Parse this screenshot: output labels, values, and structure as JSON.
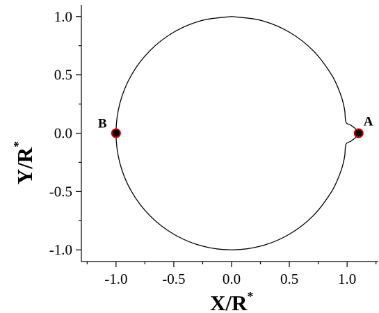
{
  "chart_data": {
    "type": "line",
    "xlabel": "X/R",
    "xlabel_sup": "*",
    "ylabel": "Y/R",
    "ylabel_sup": "*",
    "xlim": [
      -1.3,
      1.27
    ],
    "ylim": [
      -1.1,
      1.1
    ],
    "xticks": [
      -1.0,
      -0.5,
      0.0,
      0.5,
      1.0
    ],
    "yticks": [
      -1.0,
      -0.5,
      0.0,
      0.5,
      1.0
    ],
    "xtick_labels": [
      "-1.0",
      "-0.5",
      "0.0",
      "0.5",
      "1.0"
    ],
    "ytick_labels": [
      "-1.0",
      "-0.5",
      "0.0",
      "0.5",
      "1.0"
    ],
    "grid": false,
    "series": [
      {
        "type": "line",
        "color": "#000000",
        "x": [
          0.0,
          0.259,
          0.5,
          0.707,
          0.866,
          0.94,
          0.966,
          0.98,
          0.99,
          1.03,
          1.07,
          1.1,
          1.07,
          1.03,
          0.99,
          0.98,
          0.966,
          0.94,
          0.866,
          0.707,
          0.5,
          0.259,
          0.0,
          -0.259,
          -0.5,
          -0.707,
          -0.866,
          -0.966,
          -1.0,
          -0.966,
          -0.866,
          -0.707,
          -0.5,
          -0.259,
          0.0
        ],
        "y": [
          1.0,
          0.966,
          0.866,
          0.707,
          0.5,
          0.342,
          0.259,
          0.19,
          0.095,
          0.07,
          0.04,
          0.0,
          -0.04,
          -0.07,
          -0.095,
          -0.19,
          -0.259,
          -0.342,
          -0.5,
          -0.707,
          -0.866,
          -0.966,
          -1.0,
          -0.966,
          -0.866,
          -0.707,
          -0.5,
          -0.259,
          0.0,
          0.259,
          0.5,
          0.707,
          0.866,
          0.966,
          1.0
        ]
      }
    ],
    "points": [
      {
        "label": "A",
        "x": 1.1,
        "y": 0.0,
        "fill": "#000000",
        "stroke": "#cc0000"
      },
      {
        "label": "B",
        "x": -1.0,
        "y": 0.0,
        "fill": "#000000",
        "stroke": "#cc0000"
      }
    ]
  }
}
